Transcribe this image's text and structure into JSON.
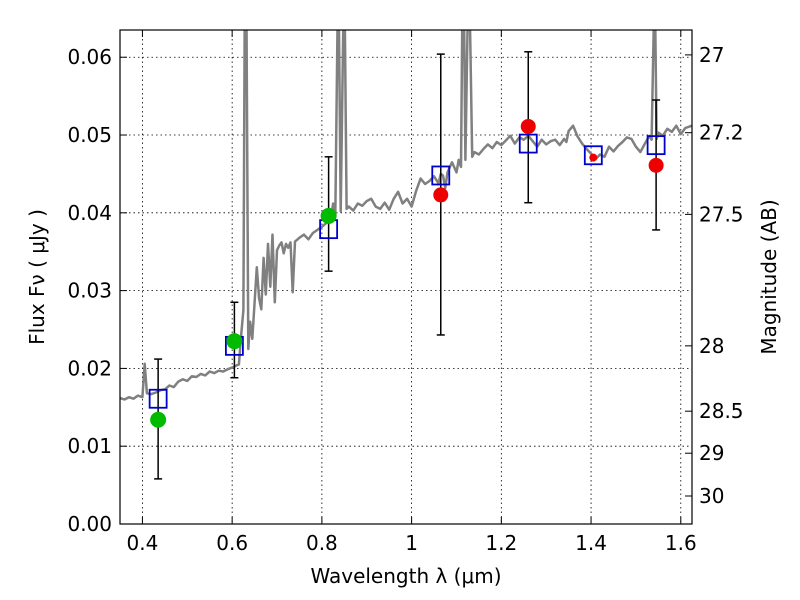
{
  "chart_data": {
    "type": "scatter",
    "xlabel": "Wavelength  λ (μm)",
    "ylabel": "Flux  Fν  ( μJy )",
    "ylabel_right": "Magnitude (AB)",
    "xlim": [
      0.35,
      1.625
    ],
    "ylim": [
      0.0,
      0.0635
    ],
    "x_ticks": [
      0.4,
      0.6,
      0.8,
      1.0,
      1.2,
      1.4,
      1.6
    ],
    "x_tick_labels": [
      "0.4",
      "0.6",
      "0.8",
      "1",
      "1.2",
      "1.4",
      "1.6"
    ],
    "y_ticks": [
      0.0,
      0.01,
      0.02,
      0.03,
      0.04,
      0.05,
      0.06
    ],
    "y_tick_labels": [
      "0.00",
      "0.01",
      "0.02",
      "0.03",
      "0.04",
      "0.05",
      "0.06"
    ],
    "right_ticks": [
      {
        "flux": 0.0603,
        "label": "27"
      },
      {
        "flux": 0.0503,
        "label": "27.2"
      },
      {
        "flux": 0.0398,
        "label": "27.5"
      },
      {
        "flux": 0.0229,
        "label": "28"
      },
      {
        "flux": 0.0145,
        "label": "28.5"
      },
      {
        "flux": 0.0091,
        "label": "29"
      },
      {
        "flux": 0.0036,
        "label": "30"
      }
    ],
    "grid": true,
    "colors": {
      "spectrum": "#808080",
      "green_points": "#00bb00",
      "red_points": "#ee0000",
      "model_boxes": "#0000cc",
      "errorbars": "#000000"
    },
    "series": [
      {
        "kind": "spectrum",
        "points": [
          [
            0.35,
            0.0162
          ],
          [
            0.36,
            0.016
          ],
          [
            0.37,
            0.0163
          ],
          [
            0.38,
            0.0161
          ],
          [
            0.39,
            0.0165
          ],
          [
            0.4,
            0.0163
          ],
          [
            0.405,
            0.0206
          ],
          [
            0.41,
            0.0168
          ],
          [
            0.42,
            0.0167
          ],
          [
            0.43,
            0.0169
          ],
          [
            0.44,
            0.0172
          ],
          [
            0.45,
            0.0173
          ],
          [
            0.46,
            0.0178
          ],
          [
            0.47,
            0.0176
          ],
          [
            0.48,
            0.0183
          ],
          [
            0.49,
            0.0186
          ],
          [
            0.5,
            0.0184
          ],
          [
            0.51,
            0.019
          ],
          [
            0.52,
            0.0189
          ],
          [
            0.53,
            0.0193
          ],
          [
            0.54,
            0.0191
          ],
          [
            0.55,
            0.0196
          ],
          [
            0.56,
            0.0194
          ],
          [
            0.57,
            0.0197
          ],
          [
            0.58,
            0.0196
          ],
          [
            0.59,
            0.0199
          ],
          [
            0.6,
            0.0201
          ],
          [
            0.61,
            0.0204
          ],
          [
            0.615,
            0.0205
          ],
          [
            0.62,
            0.0242
          ],
          [
            0.625,
            0.0275
          ],
          [
            0.628,
            0.065
          ],
          [
            0.632,
            0.065
          ],
          [
            0.636,
            0.0225
          ],
          [
            0.64,
            0.026
          ],
          [
            0.645,
            0.0238
          ],
          [
            0.65,
            0.0285
          ],
          [
            0.655,
            0.033
          ],
          [
            0.66,
            0.029
          ],
          [
            0.665,
            0.0276
          ],
          [
            0.67,
            0.0342
          ],
          [
            0.675,
            0.0295
          ],
          [
            0.68,
            0.036
          ],
          [
            0.685,
            0.0305
          ],
          [
            0.69,
            0.0372
          ],
          [
            0.695,
            0.0285
          ],
          [
            0.7,
            0.0352
          ],
          [
            0.705,
            0.0358
          ],
          [
            0.71,
            0.0362
          ],
          [
            0.715,
            0.0348
          ],
          [
            0.72,
            0.036
          ],
          [
            0.725,
            0.0355
          ],
          [
            0.73,
            0.0362
          ],
          [
            0.735,
            0.0298
          ],
          [
            0.74,
            0.0363
          ],
          [
            0.75,
            0.0368
          ],
          [
            0.76,
            0.0372
          ],
          [
            0.77,
            0.0366
          ],
          [
            0.78,
            0.0374
          ],
          [
            0.79,
            0.0378
          ],
          [
            0.8,
            0.0382
          ],
          [
            0.81,
            0.0387
          ],
          [
            0.815,
            0.039
          ],
          [
            0.82,
            0.0393
          ],
          [
            0.825,
            0.0412
          ],
          [
            0.83,
            0.0395
          ],
          [
            0.835,
            0.065
          ],
          [
            0.838,
            0.065
          ],
          [
            0.842,
            0.0402
          ],
          [
            0.848,
            0.065
          ],
          [
            0.851,
            0.065
          ],
          [
            0.855,
            0.0405
          ],
          [
            0.86,
            0.0408
          ],
          [
            0.87,
            0.0403
          ],
          [
            0.88,
            0.0412
          ],
          [
            0.89,
            0.0409
          ],
          [
            0.9,
            0.0415
          ],
          [
            0.91,
            0.0418
          ],
          [
            0.92,
            0.0408
          ],
          [
            0.93,
            0.0405
          ],
          [
            0.94,
            0.0413
          ],
          [
            0.95,
            0.0404
          ],
          [
            0.96,
            0.0418
          ],
          [
            0.97,
            0.0427
          ],
          [
            0.98,
            0.0412
          ],
          [
            0.99,
            0.0418
          ],
          [
            1.0,
            0.0408
          ],
          [
            1.01,
            0.0428
          ],
          [
            1.02,
            0.0444
          ],
          [
            1.03,
            0.0437
          ],
          [
            1.04,
            0.0441
          ],
          [
            1.05,
            0.0447
          ],
          [
            1.06,
            0.0438
          ],
          [
            1.065,
            0.045
          ],
          [
            1.07,
            0.0448
          ],
          [
            1.075,
            0.0432
          ],
          [
            1.08,
            0.0452
          ],
          [
            1.09,
            0.0465
          ],
          [
            1.1,
            0.0452
          ],
          [
            1.105,
            0.0468
          ],
          [
            1.11,
            0.0459
          ],
          [
            1.113,
            0.065
          ],
          [
            1.117,
            0.065
          ],
          [
            1.12,
            0.0468
          ],
          [
            1.125,
            0.065
          ],
          [
            1.13,
            0.065
          ],
          [
            1.135,
            0.0472
          ],
          [
            1.14,
            0.0478
          ],
          [
            1.15,
            0.0475
          ],
          [
            1.16,
            0.0482
          ],
          [
            1.17,
            0.0488
          ],
          [
            1.18,
            0.0483
          ],
          [
            1.19,
            0.0491
          ],
          [
            1.2,
            0.0487
          ],
          [
            1.21,
            0.0493
          ],
          [
            1.22,
            0.0499
          ],
          [
            1.23,
            0.0489
          ],
          [
            1.24,
            0.0497
          ],
          [
            1.25,
            0.0494
          ],
          [
            1.26,
            0.0499
          ],
          [
            1.27,
            0.0492
          ],
          [
            1.28,
            0.0485
          ],
          [
            1.29,
            0.0494
          ],
          [
            1.3,
            0.0488
          ],
          [
            1.31,
            0.0492
          ],
          [
            1.32,
            0.0494
          ],
          [
            1.33,
            0.0487
          ],
          [
            1.34,
            0.0495
          ],
          [
            1.345,
            0.0491
          ],
          [
            1.35,
            0.0505
          ],
          [
            1.36,
            0.0512
          ],
          [
            1.37,
            0.0498
          ],
          [
            1.38,
            0.0489
          ],
          [
            1.39,
            0.0482
          ],
          [
            1.4,
            0.0476
          ],
          [
            1.41,
            0.0469
          ],
          [
            1.42,
            0.0475
          ],
          [
            1.43,
            0.0472
          ],
          [
            1.44,
            0.0485
          ],
          [
            1.45,
            0.0479
          ],
          [
            1.46,
            0.0486
          ],
          [
            1.47,
            0.0491
          ],
          [
            1.48,
            0.0497
          ],
          [
            1.49,
            0.0495
          ],
          [
            1.5,
            0.0485
          ],
          [
            1.51,
            0.0478
          ],
          [
            1.52,
            0.0489
          ],
          [
            1.53,
            0.0499
          ],
          [
            1.535,
            0.0494
          ],
          [
            1.54,
            0.065
          ],
          [
            1.543,
            0.065
          ],
          [
            1.546,
            0.0495
          ],
          [
            1.55,
            0.0503
          ],
          [
            1.56,
            0.0499
          ],
          [
            1.57,
            0.0508
          ],
          [
            1.58,
            0.0504
          ],
          [
            1.59,
            0.0512
          ],
          [
            1.6,
            0.0501
          ],
          [
            1.61,
            0.0509
          ],
          [
            1.625,
            0.0512
          ]
        ]
      },
      {
        "kind": "errorbars",
        "points": [
          {
            "x": 0.435,
            "low": 0.0058,
            "high": 0.0212
          },
          {
            "x": 0.605,
            "low": 0.0188,
            "high": 0.0285
          },
          {
            "x": 0.815,
            "low": 0.0325,
            "high": 0.0472
          },
          {
            "x": 1.065,
            "low": 0.0243,
            "high": 0.0604
          },
          {
            "x": 1.26,
            "low": 0.0413,
            "high": 0.0607
          },
          {
            "x": 1.545,
            "low": 0.0378,
            "high": 0.0545
          }
        ]
      },
      {
        "kind": "model-boxes",
        "points": [
          [
            0.435,
            0.0161
          ],
          [
            0.605,
            0.0229
          ],
          [
            0.815,
            0.0379
          ],
          [
            1.065,
            0.0448
          ],
          [
            1.26,
            0.0489
          ],
          [
            1.405,
            0.0474
          ],
          [
            1.545,
            0.0487
          ]
        ]
      },
      {
        "kind": "green-points",
        "points": [
          [
            0.435,
            0.0134
          ],
          [
            0.605,
            0.0235
          ],
          [
            0.815,
            0.0396
          ]
        ]
      },
      {
        "kind": "red-points",
        "points": [
          [
            1.065,
            0.0423
          ],
          [
            1.26,
            0.0511
          ],
          [
            1.405,
            0.0471
          ],
          [
            1.545,
            0.0461
          ]
        ]
      }
    ]
  }
}
